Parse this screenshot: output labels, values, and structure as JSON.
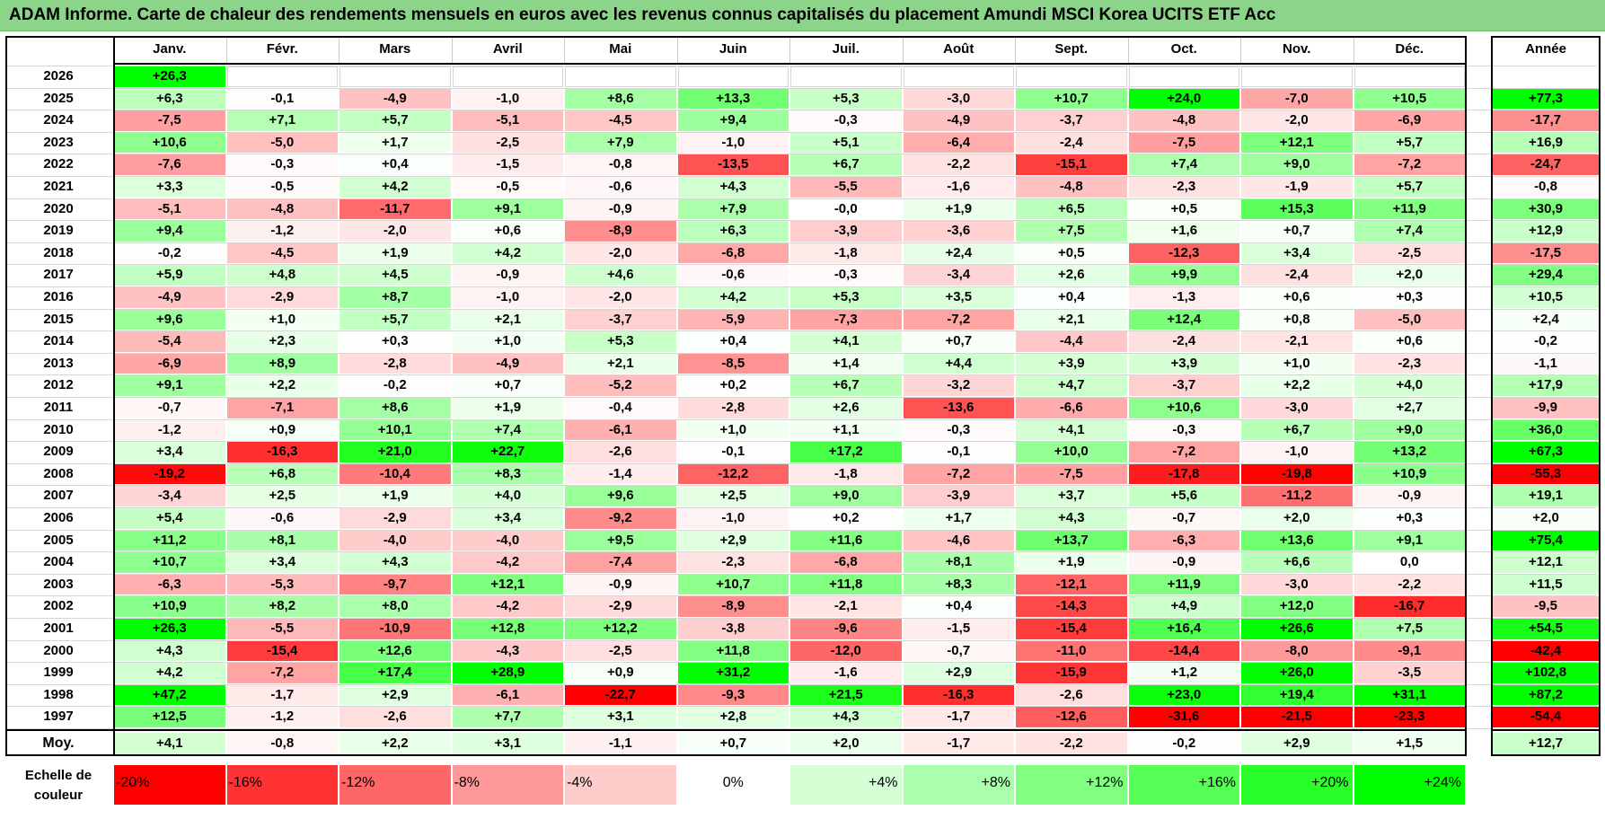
{
  "title": "ADAM Informe. Carte de chaleur des rendements mensuels en euros avec les revenus connus capitalisés du placement Amundi MSCI Korea UCITS ETF Acc",
  "colors": {
    "title_bg": "#8cd48a",
    "neg_max": "#ff0000",
    "pos_max": "#00ff00",
    "neutral": "#ffffff"
  },
  "chart_data": {
    "type": "heatmap",
    "title": "ADAM Informe. Carte de chaleur des rendements mensuels en euros avec les revenus connus capitalisés du placement Amundi MSCI Korea UCITS ETF Acc",
    "columns": [
      "Janv.",
      "Févr.",
      "Mars",
      "Avril",
      "Mai",
      "Juin",
      "Juil.",
      "Août",
      "Sept.",
      "Oct.",
      "Nov.",
      "Déc."
    ],
    "year_column": "Année",
    "avg_label": "Moy.",
    "rows": [
      {
        "year": "2026",
        "values": [
          "+26,3",
          "",
          "",
          "",
          "",
          "",
          "",
          "",
          "",
          "",
          "",
          ""
        ],
        "annual": ""
      },
      {
        "year": "2025",
        "values": [
          "+6,3",
          "-0,1",
          "-4,9",
          "-1,0",
          "+8,6",
          "+13,3",
          "+5,3",
          "-3,0",
          "+10,7",
          "+24,0",
          "-7,0",
          "+10,5"
        ],
        "annual": "+77,3"
      },
      {
        "year": "2024",
        "values": [
          "-7,5",
          "+7,1",
          "+5,7",
          "-5,1",
          "-4,5",
          "+9,4",
          "-0,3",
          "-4,9",
          "-3,7",
          "-4,8",
          "-2,0",
          "-6,9"
        ],
        "annual": "-17,7"
      },
      {
        "year": "2023",
        "values": [
          "+10,6",
          "-5,0",
          "+1,7",
          "-2,5",
          "+7,9",
          "-1,0",
          "+5,1",
          "-6,4",
          "-2,4",
          "-7,5",
          "+12,1",
          "+5,7"
        ],
        "annual": "+16,9"
      },
      {
        "year": "2022",
        "values": [
          "-7,6",
          "-0,3",
          "+0,4",
          "-1,5",
          "-0,8",
          "-13,5",
          "+6,7",
          "-2,2",
          "-15,1",
          "+7,4",
          "+9,0",
          "-7,2"
        ],
        "annual": "-24,7"
      },
      {
        "year": "2021",
        "values": [
          "+3,3",
          "-0,5",
          "+4,2",
          "-0,5",
          "-0,6",
          "+4,3",
          "-5,5",
          "-1,6",
          "-4,8",
          "-2,3",
          "-1,9",
          "+5,7"
        ],
        "annual": "-0,8"
      },
      {
        "year": "2020",
        "values": [
          "-5,1",
          "-4,8",
          "-11,7",
          "+9,1",
          "-0,9",
          "+7,9",
          "-0,0",
          "+1,9",
          "+6,5",
          "+0,5",
          "+15,3",
          "+11,9"
        ],
        "annual": "+30,9"
      },
      {
        "year": "2019",
        "values": [
          "+9,4",
          "-1,2",
          "-2,0",
          "+0,6",
          "-8,9",
          "+6,3",
          "-3,9",
          "-3,6",
          "+7,5",
          "+1,6",
          "+0,7",
          "+7,4"
        ],
        "annual": "+12,9"
      },
      {
        "year": "2018",
        "values": [
          "-0,2",
          "-4,5",
          "+1,9",
          "+4,2",
          "-2,0",
          "-6,8",
          "-1,8",
          "+2,4",
          "+0,5",
          "-12,3",
          "+3,4",
          "-2,5"
        ],
        "annual": "-17,5"
      },
      {
        "year": "2017",
        "values": [
          "+5,9",
          "+4,8",
          "+4,5",
          "-0,9",
          "+4,6",
          "-0,6",
          "-0,3",
          "-3,4",
          "+2,6",
          "+9,9",
          "-2,4",
          "+2,0"
        ],
        "annual": "+29,4"
      },
      {
        "year": "2016",
        "values": [
          "-4,9",
          "-2,9",
          "+8,7",
          "-1,0",
          "-2,0",
          "+4,2",
          "+5,3",
          "+3,5",
          "+0,4",
          "-1,3",
          "+0,6",
          "+0,3"
        ],
        "annual": "+10,5"
      },
      {
        "year": "2015",
        "values": [
          "+9,6",
          "+1,0",
          "+5,7",
          "+2,1",
          "-3,7",
          "-5,9",
          "-7,3",
          "-7,2",
          "+2,1",
          "+12,4",
          "+0,8",
          "-5,0"
        ],
        "annual": "+2,4"
      },
      {
        "year": "2014",
        "values": [
          "-5,4",
          "+2,3",
          "+0,3",
          "+1,0",
          "+5,3",
          "+0,4",
          "+4,1",
          "+0,7",
          "-4,4",
          "-2,4",
          "-2,1",
          "+0,6"
        ],
        "annual": "-0,2"
      },
      {
        "year": "2013",
        "values": [
          "-6,9",
          "+8,9",
          "-2,8",
          "-4,9",
          "+2,1",
          "-8,5",
          "+1,4",
          "+4,4",
          "+3,9",
          "+3,9",
          "+1,0",
          "-2,3"
        ],
        "annual": "-1,1"
      },
      {
        "year": "2012",
        "values": [
          "+9,1",
          "+2,2",
          "-0,2",
          "+0,7",
          "-5,2",
          "+0,2",
          "+6,7",
          "-3,2",
          "+4,7",
          "-3,7",
          "+2,2",
          "+4,0"
        ],
        "annual": "+17,9"
      },
      {
        "year": "2011",
        "values": [
          "-0,7",
          "-7,1",
          "+8,6",
          "+1,9",
          "-0,4",
          "-2,8",
          "+2,6",
          "-13,6",
          "-6,6",
          "+10,6",
          "-3,0",
          "+2,7"
        ],
        "annual": "-9,9"
      },
      {
        "year": "2010",
        "values": [
          "-1,2",
          "+0,9",
          "+10,1",
          "+7,4",
          "-6,1",
          "+1,0",
          "+1,1",
          "-0,3",
          "+4,1",
          "-0,3",
          "+6,7",
          "+9,0"
        ],
        "annual": "+36,0"
      },
      {
        "year": "2009",
        "values": [
          "+3,4",
          "-16,3",
          "+21,0",
          "+22,7",
          "-2,6",
          "-0,1",
          "+17,2",
          "-0,1",
          "+10,0",
          "-7,2",
          "-1,0",
          "+13,2"
        ],
        "annual": "+67,3"
      },
      {
        "year": "2008",
        "values": [
          "-19,2",
          "+6,8",
          "-10,4",
          "+8,3",
          "-1,4",
          "-12,2",
          "-1,8",
          "-7,2",
          "-7,5",
          "-17,8",
          "-19,8",
          "+10,9"
        ],
        "annual": "-55,3"
      },
      {
        "year": "2007",
        "values": [
          "-3,4",
          "+2,5",
          "+1,9",
          "+4,0",
          "+9,6",
          "+2,5",
          "+9,0",
          "-3,9",
          "+3,7",
          "+5,6",
          "-11,2",
          "-0,9"
        ],
        "annual": "+19,1"
      },
      {
        "year": "2006",
        "values": [
          "+5,4",
          "-0,6",
          "-2,9",
          "+3,4",
          "-9,2",
          "-1,0",
          "+0,2",
          "+1,7",
          "+4,3",
          "-0,7",
          "+2,0",
          "+0,3"
        ],
        "annual": "+2,0"
      },
      {
        "year": "2005",
        "values": [
          "+11,2",
          "+8,1",
          "-4,0",
          "-4,0",
          "+9,5",
          "+2,9",
          "+11,6",
          "-4,6",
          "+13,7",
          "-6,3",
          "+13,6",
          "+9,1"
        ],
        "annual": "+75,4"
      },
      {
        "year": "2004",
        "values": [
          "+10,7",
          "+3,4",
          "+4,3",
          "-4,2",
          "-7,4",
          "-2,3",
          "-6,8",
          "+8,1",
          "+1,9",
          "-0,9",
          "+6,6",
          "0,0"
        ],
        "annual": "+12,1"
      },
      {
        "year": "2003",
        "values": [
          "-6,3",
          "-5,3",
          "-9,7",
          "+12,1",
          "-0,9",
          "+10,7",
          "+11,8",
          "+8,3",
          "-12,1",
          "+11,9",
          "-3,0",
          "-2,2"
        ],
        "annual": "+11,5"
      },
      {
        "year": "2002",
        "values": [
          "+10,9",
          "+8,2",
          "+8,0",
          "-4,2",
          "-2,9",
          "-8,9",
          "-2,1",
          "+0,4",
          "-14,3",
          "+4,9",
          "+12,0",
          "-16,7"
        ],
        "annual": "-9,5"
      },
      {
        "year": "2001",
        "values": [
          "+26,3",
          "-5,5",
          "-10,9",
          "+12,8",
          "+12,2",
          "-3,8",
          "-9,6",
          "-1,5",
          "-15,4",
          "+16,4",
          "+26,6",
          "+7,5"
        ],
        "annual": "+54,5"
      },
      {
        "year": "2000",
        "values": [
          "+4,3",
          "-15,4",
          "+12,6",
          "-4,3",
          "-2,5",
          "+11,8",
          "-12,0",
          "-0,7",
          "-11,0",
          "-14,4",
          "-8,0",
          "-9,1"
        ],
        "annual": "-42,4"
      },
      {
        "year": "1999",
        "values": [
          "+4,2",
          "-7,2",
          "+17,4",
          "+28,9",
          "+0,9",
          "+31,2",
          "-1,6",
          "+2,9",
          "-15,9",
          "+1,2",
          "+26,0",
          "-3,5"
        ],
        "annual": "+102,8"
      },
      {
        "year": "1998",
        "values": [
          "+47,2",
          "-1,7",
          "+2,9",
          "-6,1",
          "-22,7",
          "-9,3",
          "+21,5",
          "-16,3",
          "-2,6",
          "+23,0",
          "+19,4",
          "+31,1"
        ],
        "annual": "+87,2"
      },
      {
        "year": "1997",
        "values": [
          "+12,5",
          "-1,2",
          "-2,6",
          "+7,7",
          "+3,1",
          "+2,8",
          "+4,3",
          "-1,7",
          "-12,6",
          "-31,6",
          "-21,5",
          "-23,3"
        ],
        "annual": "-54,4"
      }
    ],
    "averages": [
      "+4,1",
      "-0,8",
      "+2,2",
      "+3,1",
      "-1,1",
      "+0,7",
      "+2,0",
      "-1,7",
      "-2,2",
      "-0,2",
      "+2,9",
      "+1,5"
    ],
    "annual_average": "+12,7",
    "scale_label": "Echelle de couleur",
    "scale": [
      {
        "label": "-20%",
        "value": -20
      },
      {
        "label": "-16%",
        "value": -16
      },
      {
        "label": "-12%",
        "value": -12
      },
      {
        "label": "-8%",
        "value": -8
      },
      {
        "label": "-4%",
        "value": -4
      },
      {
        "label": "0%",
        "value": 0
      },
      {
        "label": "+4%",
        "value": 4
      },
      {
        "label": "+8%",
        "value": 8
      },
      {
        "label": "+12%",
        "value": 12
      },
      {
        "label": "+16%",
        "value": 16
      },
      {
        "label": "+20%",
        "value": 20
      },
      {
        "label": "+24%",
        "value": 24
      }
    ]
  }
}
